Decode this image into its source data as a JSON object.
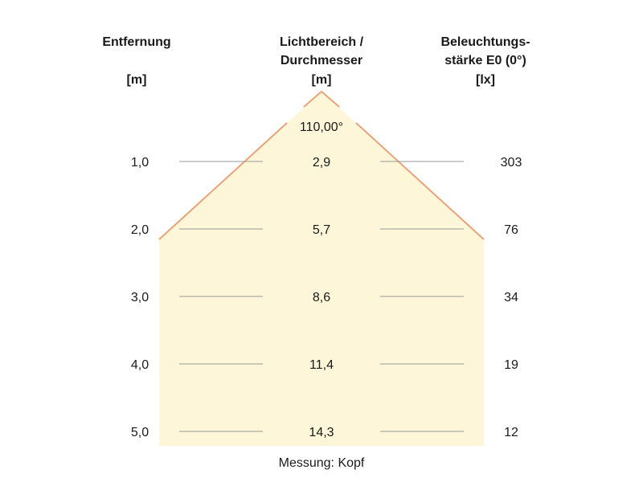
{
  "headers": {
    "distance": {
      "line1": "Entfernung",
      "unit": "[m]"
    },
    "diameter": {
      "line1": "Lichtbereich /",
      "line2": "Durchmesser",
      "unit": "[m]"
    },
    "illuminance": {
      "line1": "Beleuchtungs-",
      "line2": "stärke E0 (0°)",
      "unit": "[lx]"
    }
  },
  "beam_angle": "110,00°",
  "rows": [
    {
      "distance": "1,0",
      "diameter": "2,9",
      "illuminance": "303"
    },
    {
      "distance": "2,0",
      "diameter": "5,7",
      "illuminance": "76"
    },
    {
      "distance": "3,0",
      "diameter": "8,6",
      "illuminance": "34"
    },
    {
      "distance": "4,0",
      "diameter": "11,4",
      "illuminance": "19"
    },
    {
      "distance": "5,0",
      "diameter": "14,3",
      "illuminance": "12"
    }
  ],
  "footer": "Messung: Kopf",
  "colors": {
    "beam_fill": "#fdf6d8",
    "beam_edge": "#e8a37a",
    "row_line": "#9a9a9a"
  }
}
